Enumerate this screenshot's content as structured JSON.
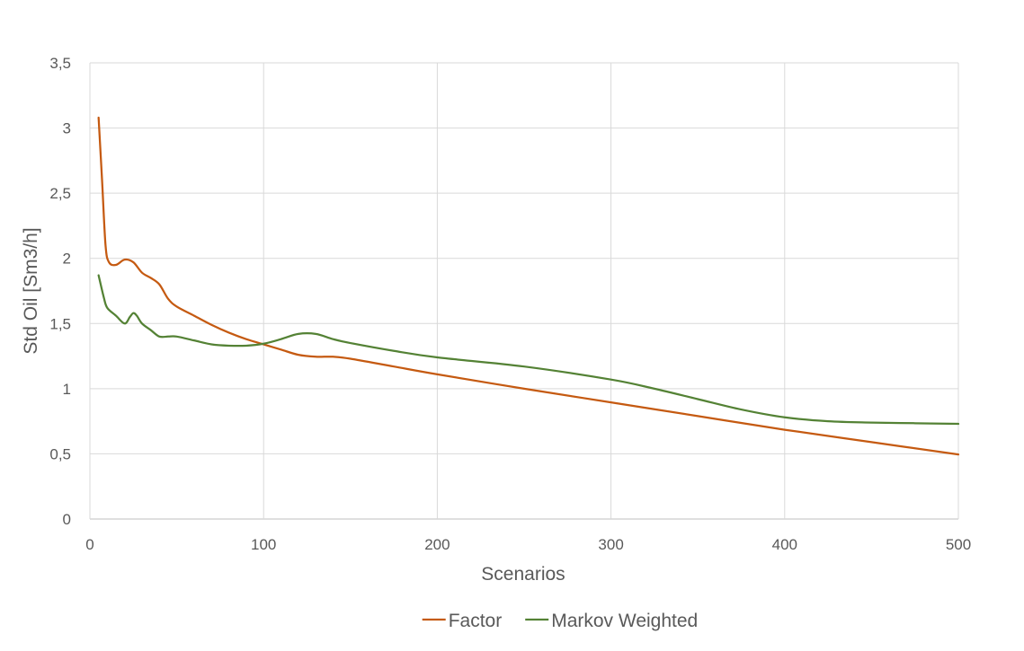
{
  "chart_data": {
    "type": "line",
    "title": "",
    "xlabel": "Scenarios",
    "ylabel": "Std Oil [Sm3/h]",
    "xlim": [
      0,
      500
    ],
    "ylim": [
      0,
      3.5
    ],
    "grid": true,
    "legend_position": "bottom",
    "x_ticks": [
      {
        "value": 0,
        "label": "0"
      },
      {
        "value": 100,
        "label": "100"
      },
      {
        "value": 200,
        "label": "200"
      },
      {
        "value": 300,
        "label": "300"
      },
      {
        "value": 400,
        "label": "400"
      },
      {
        "value": 500,
        "label": "500"
      }
    ],
    "y_ticks": [
      {
        "value": 0,
        "label": "0"
      },
      {
        "value": 0.5,
        "label": "0,5"
      },
      {
        "value": 1,
        "label": "1"
      },
      {
        "value": 1.5,
        "label": "1,5"
      },
      {
        "value": 2,
        "label": "2"
      },
      {
        "value": 2.5,
        "label": "2,5"
      },
      {
        "value": 3,
        "label": "3"
      },
      {
        "value": 3.5,
        "label": "3,5"
      }
    ],
    "series": [
      {
        "name": "Factor",
        "color": "#c55a11",
        "points": [
          [
            5,
            3.08
          ],
          [
            7,
            2.6
          ],
          [
            9,
            2.1
          ],
          [
            11,
            1.97
          ],
          [
            15,
            1.95
          ],
          [
            20,
            1.99
          ],
          [
            25,
            1.97
          ],
          [
            30,
            1.89
          ],
          [
            35,
            1.85
          ],
          [
            40,
            1.8
          ],
          [
            45,
            1.69
          ],
          [
            50,
            1.63
          ],
          [
            60,
            1.56
          ],
          [
            70,
            1.49
          ],
          [
            80,
            1.43
          ],
          [
            90,
            1.38
          ],
          [
            100,
            1.34
          ],
          [
            110,
            1.3
          ],
          [
            120,
            1.26
          ],
          [
            130,
            1.245
          ],
          [
            140,
            1.245
          ],
          [
            150,
            1.23
          ],
          [
            175,
            1.17
          ],
          [
            200,
            1.11
          ],
          [
            250,
            1.0
          ],
          [
            300,
            0.895
          ],
          [
            350,
            0.79
          ],
          [
            400,
            0.685
          ],
          [
            450,
            0.59
          ],
          [
            500,
            0.495
          ]
        ]
      },
      {
        "name": "Markov Weighted",
        "color": "#548235",
        "points": [
          [
            5,
            1.87
          ],
          [
            8,
            1.7
          ],
          [
            10,
            1.62
          ],
          [
            15,
            1.56
          ],
          [
            20,
            1.5
          ],
          [
            23,
            1.55
          ],
          [
            25,
            1.58
          ],
          [
            27,
            1.56
          ],
          [
            30,
            1.5
          ],
          [
            35,
            1.45
          ],
          [
            40,
            1.4
          ],
          [
            45,
            1.4
          ],
          [
            50,
            1.4
          ],
          [
            60,
            1.37
          ],
          [
            70,
            1.34
          ],
          [
            80,
            1.33
          ],
          [
            90,
            1.33
          ],
          [
            100,
            1.345
          ],
          [
            110,
            1.38
          ],
          [
            120,
            1.42
          ],
          [
            130,
            1.42
          ],
          [
            140,
            1.38
          ],
          [
            150,
            1.35
          ],
          [
            175,
            1.29
          ],
          [
            200,
            1.24
          ],
          [
            250,
            1.17
          ],
          [
            300,
            1.07
          ],
          [
            325,
            1.0
          ],
          [
            350,
            0.92
          ],
          [
            375,
            0.84
          ],
          [
            400,
            0.78
          ],
          [
            425,
            0.75
          ],
          [
            450,
            0.74
          ],
          [
            475,
            0.735
          ],
          [
            500,
            0.73
          ]
        ]
      }
    ]
  }
}
